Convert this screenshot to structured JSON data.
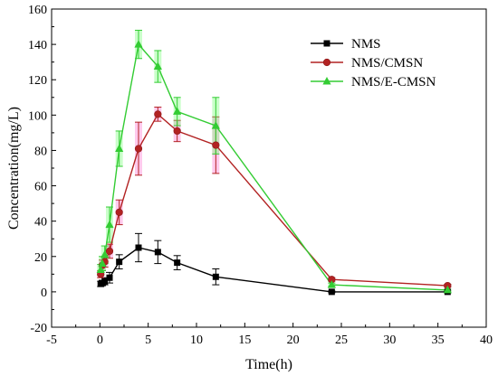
{
  "colors": {
    "NMS": "#000000",
    "NMS/CMSN": "#b22222",
    "NMS/E-CMSN": "#33cc33",
    "NMS/CMSN_errorband": "#ff66cc",
    "NMS/E-CMSN_errorband": "#66ff66"
  },
  "chart_data": {
    "type": "line",
    "xlabel": "Time(h)",
    "ylabel": "Concentration(mg/L)",
    "xlim": [
      -5,
      40
    ],
    "ylim": [
      -20,
      160
    ],
    "xticks": [
      -5,
      0,
      5,
      10,
      15,
      20,
      25,
      30,
      35,
      40
    ],
    "yticks": [
      -20,
      0,
      20,
      40,
      60,
      80,
      100,
      120,
      140,
      160
    ],
    "grid": false,
    "legend": "top-right",
    "series": [
      {
        "name": "NMS",
        "marker": "square",
        "x": [
          0.083,
          0.25,
          0.5,
          1,
          2,
          4,
          6,
          8,
          12,
          24,
          36
        ],
        "y": [
          4.5,
          5,
          6,
          8,
          17,
          25,
          22.5,
          16.5,
          8.5,
          0,
          0
        ],
        "err": [
          1.5,
          1.5,
          2,
          3,
          4,
          8,
          6.5,
          4,
          4.5,
          0.5,
          0.5
        ]
      },
      {
        "name": "NMS/CMSN",
        "marker": "circle",
        "x": [
          0.083,
          0.25,
          0.5,
          1,
          2,
          4,
          6,
          8,
          12,
          24,
          36
        ],
        "y": [
          10,
          15,
          17,
          23,
          45,
          81,
          100.5,
          91,
          83,
          7,
          3.5
        ],
        "err": [
          2,
          3,
          3,
          4,
          7,
          15,
          4,
          6,
          16,
          1,
          0.8
        ]
      },
      {
        "name": "NMS/E-CMSN",
        "marker": "triangle",
        "x": [
          0.083,
          0.25,
          0.5,
          1,
          2,
          4,
          6,
          8,
          12,
          24,
          36
        ],
        "y": [
          12.5,
          16,
          21,
          38,
          81,
          140,
          127.5,
          102,
          94,
          4,
          1
        ],
        "err": [
          3,
          4,
          5,
          10,
          10,
          8,
          9,
          8,
          16,
          1,
          0.5
        ]
      }
    ]
  }
}
